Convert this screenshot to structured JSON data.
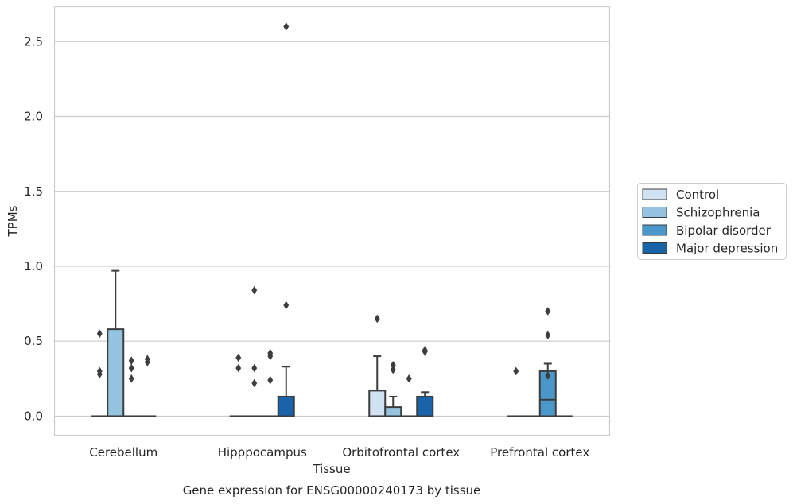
{
  "chart_data": {
    "type": "box",
    "caption": "Gene expression for ENSG00000240173 by tissue",
    "xlabel": "Tissue",
    "ylabel": "TPMs",
    "ylim": [
      -0.125,
      2.735
    ],
    "yticks": [
      0.0,
      0.5,
      1.0,
      1.5,
      2.0,
      2.5
    ],
    "ytick_labels": [
      "0.0",
      "0.5",
      "1.0",
      "1.5",
      "2.0",
      "2.5"
    ],
    "grid": "horizontal",
    "legend_position": "right",
    "categories": [
      "Cerebellum",
      "Hipppocampus",
      "Orbitofrontal cortex",
      "Prefrontal cortex"
    ],
    "series": [
      {
        "name": "Control",
        "color": "#d0e1f2",
        "boxes": [
          {
            "category": "Cerebellum",
            "q1": 0,
            "median": 0,
            "q3": 0,
            "whisker_low": 0,
            "whisker_high": 0,
            "outliers": [
              0.55,
              0.3,
              0.28
            ]
          },
          {
            "category": "Hipppocampus",
            "q1": 0,
            "median": 0,
            "q3": 0,
            "whisker_low": 0,
            "whisker_high": 0,
            "outliers": [
              0.39,
              0.32
            ]
          },
          {
            "category": "Orbitofrontal cortex",
            "q1": 0,
            "median": 0,
            "q3": 0.17,
            "whisker_low": 0,
            "whisker_high": 0.4,
            "outliers": [
              0.65
            ]
          },
          {
            "category": "Prefrontal cortex",
            "q1": 0,
            "median": 0,
            "q3": 0,
            "whisker_low": 0,
            "whisker_high": 0,
            "outliers": [
              0.3
            ]
          }
        ]
      },
      {
        "name": "Schizophrenia",
        "color": "#94c4df",
        "boxes": [
          {
            "category": "Cerebellum",
            "q1": 0,
            "median": 0,
            "q3": 0.58,
            "whisker_low": 0,
            "whisker_high": 0.97,
            "outliers": []
          },
          {
            "category": "Hipppocampus",
            "q1": 0,
            "median": 0,
            "q3": 0,
            "whisker_low": 0,
            "whisker_high": 0,
            "outliers": [
              0.84,
              0.32,
              0.22
            ]
          },
          {
            "category": "Orbitofrontal cortex",
            "q1": 0,
            "median": 0,
            "q3": 0.06,
            "whisker_low": 0,
            "whisker_high": 0.13,
            "outliers": [
              0.34,
              0.31
            ]
          },
          {
            "category": "Prefrontal cortex",
            "q1": 0,
            "median": 0,
            "q3": 0,
            "whisker_low": 0,
            "whisker_high": 0,
            "outliers": []
          }
        ]
      },
      {
        "name": "Bipolar disorder",
        "color": "#4a98c9",
        "boxes": [
          {
            "category": "Cerebellum",
            "q1": 0,
            "median": 0,
            "q3": 0,
            "whisker_low": 0,
            "whisker_high": 0,
            "outliers": [
              0.37,
              0.32,
              0.25
            ]
          },
          {
            "category": "Hipppocampus",
            "q1": 0,
            "median": 0,
            "q3": 0,
            "whisker_low": 0,
            "whisker_high": 0,
            "outliers": [
              0.42,
              0.4,
              0.24
            ]
          },
          {
            "category": "Orbitofrontal cortex",
            "q1": 0,
            "median": 0,
            "q3": 0,
            "whisker_low": 0,
            "whisker_high": 0,
            "outliers": [
              0.25
            ]
          },
          {
            "category": "Prefrontal cortex",
            "q1": 0,
            "median": 0.11,
            "q3": 0.3,
            "whisker_low": 0,
            "whisker_high": 0.35,
            "outliers": [
              0.7,
              0.54,
              0.27
            ]
          }
        ]
      },
      {
        "name": "Major depression",
        "color": "#1764ab",
        "boxes": [
          {
            "category": "Cerebellum",
            "q1": 0,
            "median": 0,
            "q3": 0,
            "whisker_low": 0,
            "whisker_high": 0,
            "outliers": [
              0.38,
              0.36
            ]
          },
          {
            "category": "Hipppocampus",
            "q1": 0,
            "median": 0,
            "q3": 0.13,
            "whisker_low": 0,
            "whisker_high": 0.33,
            "outliers": [
              2.6,
              0.74
            ]
          },
          {
            "category": "Orbitofrontal cortex",
            "q1": 0,
            "median": 0,
            "q3": 0.13,
            "whisker_low": 0,
            "whisker_high": 0.16,
            "outliers": [
              0.44,
              0.43
            ]
          },
          {
            "category": "Prefrontal cortex",
            "q1": 0,
            "median": 0,
            "q3": 0,
            "whisker_low": 0,
            "whisker_high": 0,
            "outliers": []
          }
        ]
      }
    ]
  }
}
